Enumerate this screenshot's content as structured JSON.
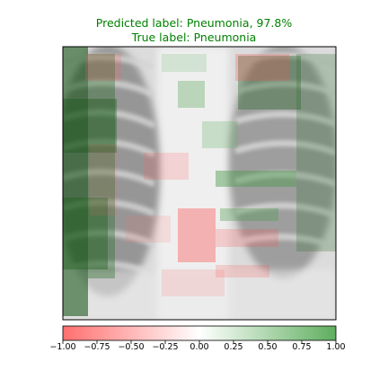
{
  "title": {
    "predicted": "Predicted label: Pneumonia, 97.8%",
    "true": "True label: Pneumonia",
    "color": "#008000"
  },
  "image": {
    "subject": "chest x-ray with attribution heatmap overlay",
    "positive_color": "#2e8b2e",
    "negative_color": "#ff4040"
  },
  "colorbar": {
    "range": [
      -1.0,
      1.0
    ],
    "ticks": [
      "−1.00",
      "−0.75",
      "−0.50",
      "−0.25",
      "0.00",
      "0.25",
      "0.50",
      "0.75",
      "1.00"
    ],
    "low_color": "#ff6f6f",
    "high_color": "#5fae5f"
  }
}
